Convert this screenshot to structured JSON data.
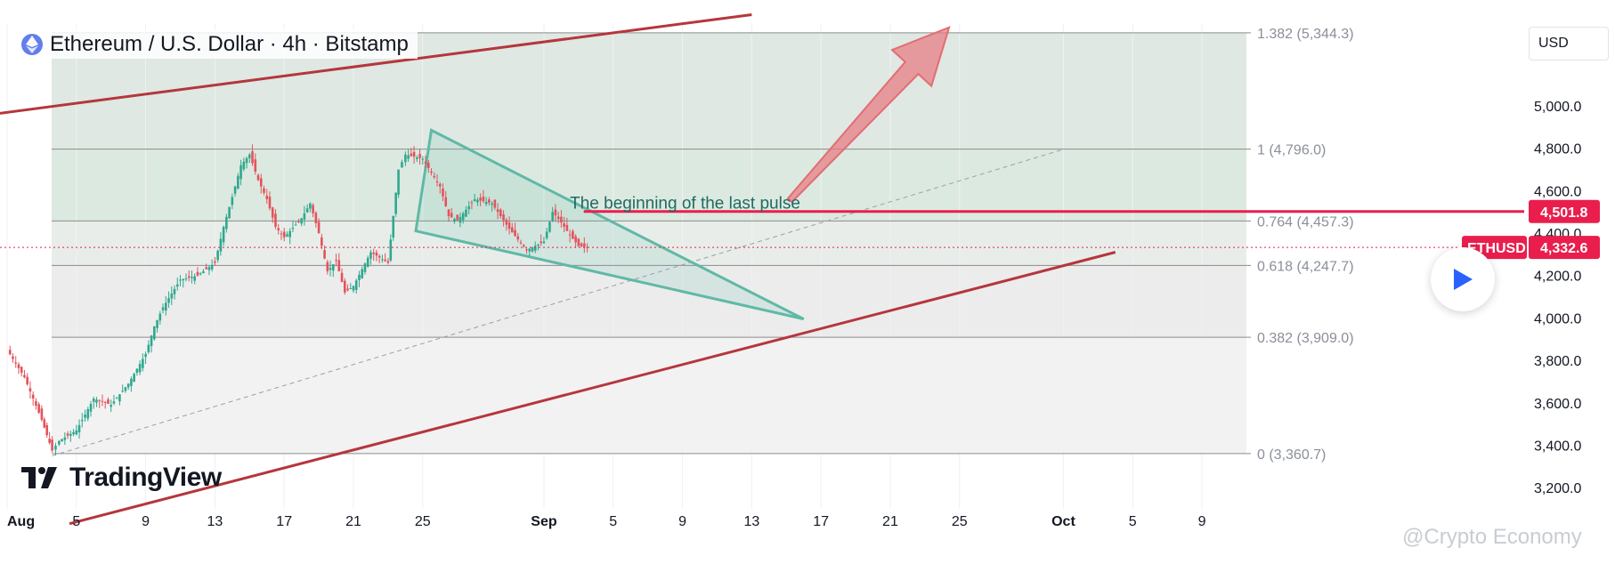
{
  "header": {
    "title": "Ethereum / U.S. Dollar · 4h · Bitstamp",
    "currency": "USD"
  },
  "branding": {
    "logo_text": "TradingView",
    "watermark": "@Crypto Economy"
  },
  "colors": {
    "channel": "#b5363d",
    "wedge": "#5fb9a6",
    "arrow": "#e8787f",
    "up_candle": "#2fa88e",
    "down_candle": "#e3535b",
    "price_line": "#e91e4d",
    "fib_line": "#8c8c8c"
  },
  "chart_data": {
    "type": "candlestick",
    "symbol": "ETHUSD",
    "timeframe": "4h",
    "exchange": "Bitstamp",
    "x_ticks": [
      "Aug",
      "5",
      "9",
      "13",
      "17",
      "21",
      "25",
      "Sep",
      "5",
      "9",
      "13",
      "17",
      "21",
      "25",
      "Oct",
      "5",
      "9"
    ],
    "y_ticks": [
      "3,200.0",
      "3,400.0",
      "3,600.0",
      "3,800.0",
      "4,000.0",
      "4,200.0",
      "4,400.0",
      "4,600.0",
      "4,800.0",
      "5,000.0"
    ],
    "y_range": [
      3100,
      5390
    ],
    "x_range_days": [
      0,
      70
    ],
    "fib_levels": [
      {
        "label": "1.382 (5,344.3)",
        "ratio": 1.382,
        "price": 5344.3
      },
      {
        "label": "1 (4,796.0)",
        "ratio": 1,
        "price": 4796.0
      },
      {
        "label": "0.764 (4,457.3)",
        "ratio": 0.764,
        "price": 4457.3
      },
      {
        "label": "0.618 (4,247.7)",
        "ratio": 0.618,
        "price": 4247.7
      },
      {
        "label": "0.382 (3,909.0)",
        "ratio": 0.382,
        "price": 3909.0
      },
      {
        "label": "0 (3,360.7)",
        "ratio": 0,
        "price": 3360.7
      }
    ],
    "price_labels": [
      {
        "value": "4,501.8",
        "price": 4501.8
      },
      {
        "symbol": "ETHUSD",
        "value": "4,332.6",
        "price": 4332.6
      }
    ],
    "annotation": "The beginning of the last pulse",
    "price_path": [
      [
        0,
        3850
      ],
      [
        1,
        3720
      ],
      [
        2,
        3520
      ],
      [
        2.6,
        3375
      ],
      [
        3,
        3420
      ],
      [
        4,
        3470
      ],
      [
        5,
        3620
      ],
      [
        6,
        3590
      ],
      [
        7,
        3690
      ],
      [
        8,
        3830
      ],
      [
        8.5,
        3960
      ],
      [
        9,
        4050
      ],
      [
        10,
        4180
      ],
      [
        11,
        4200
      ],
      [
        12,
        4260
      ],
      [
        12.5,
        4430
      ],
      [
        13,
        4570
      ],
      [
        13.5,
        4720
      ],
      [
        14,
        4770
      ],
      [
        14.5,
        4650
      ],
      [
        15,
        4560
      ],
      [
        15.5,
        4430
      ],
      [
        16,
        4380
      ],
      [
        17,
        4470
      ],
      [
        17.5,
        4540
      ],
      [
        18,
        4400
      ],
      [
        18.5,
        4220
      ],
      [
        19,
        4270
      ],
      [
        19.5,
        4120
      ],
      [
        20,
        4150
      ],
      [
        20.5,
        4230
      ],
      [
        21,
        4310
      ],
      [
        22,
        4260
      ],
      [
        22.6,
        4700
      ],
      [
        23,
        4770
      ],
      [
        24,
        4750
      ],
      [
        25,
        4620
      ],
      [
        25.5,
        4480
      ],
      [
        26,
        4460
      ],
      [
        27,
        4560
      ],
      [
        28,
        4540
      ],
      [
        29,
        4420
      ],
      [
        30,
        4320
      ],
      [
        31,
        4360
      ],
      [
        31.5,
        4500
      ],
      [
        32,
        4450
      ],
      [
        32.5,
        4390
      ],
      [
        33,
        4340
      ],
      [
        33.5,
        4332.6
      ]
    ]
  }
}
